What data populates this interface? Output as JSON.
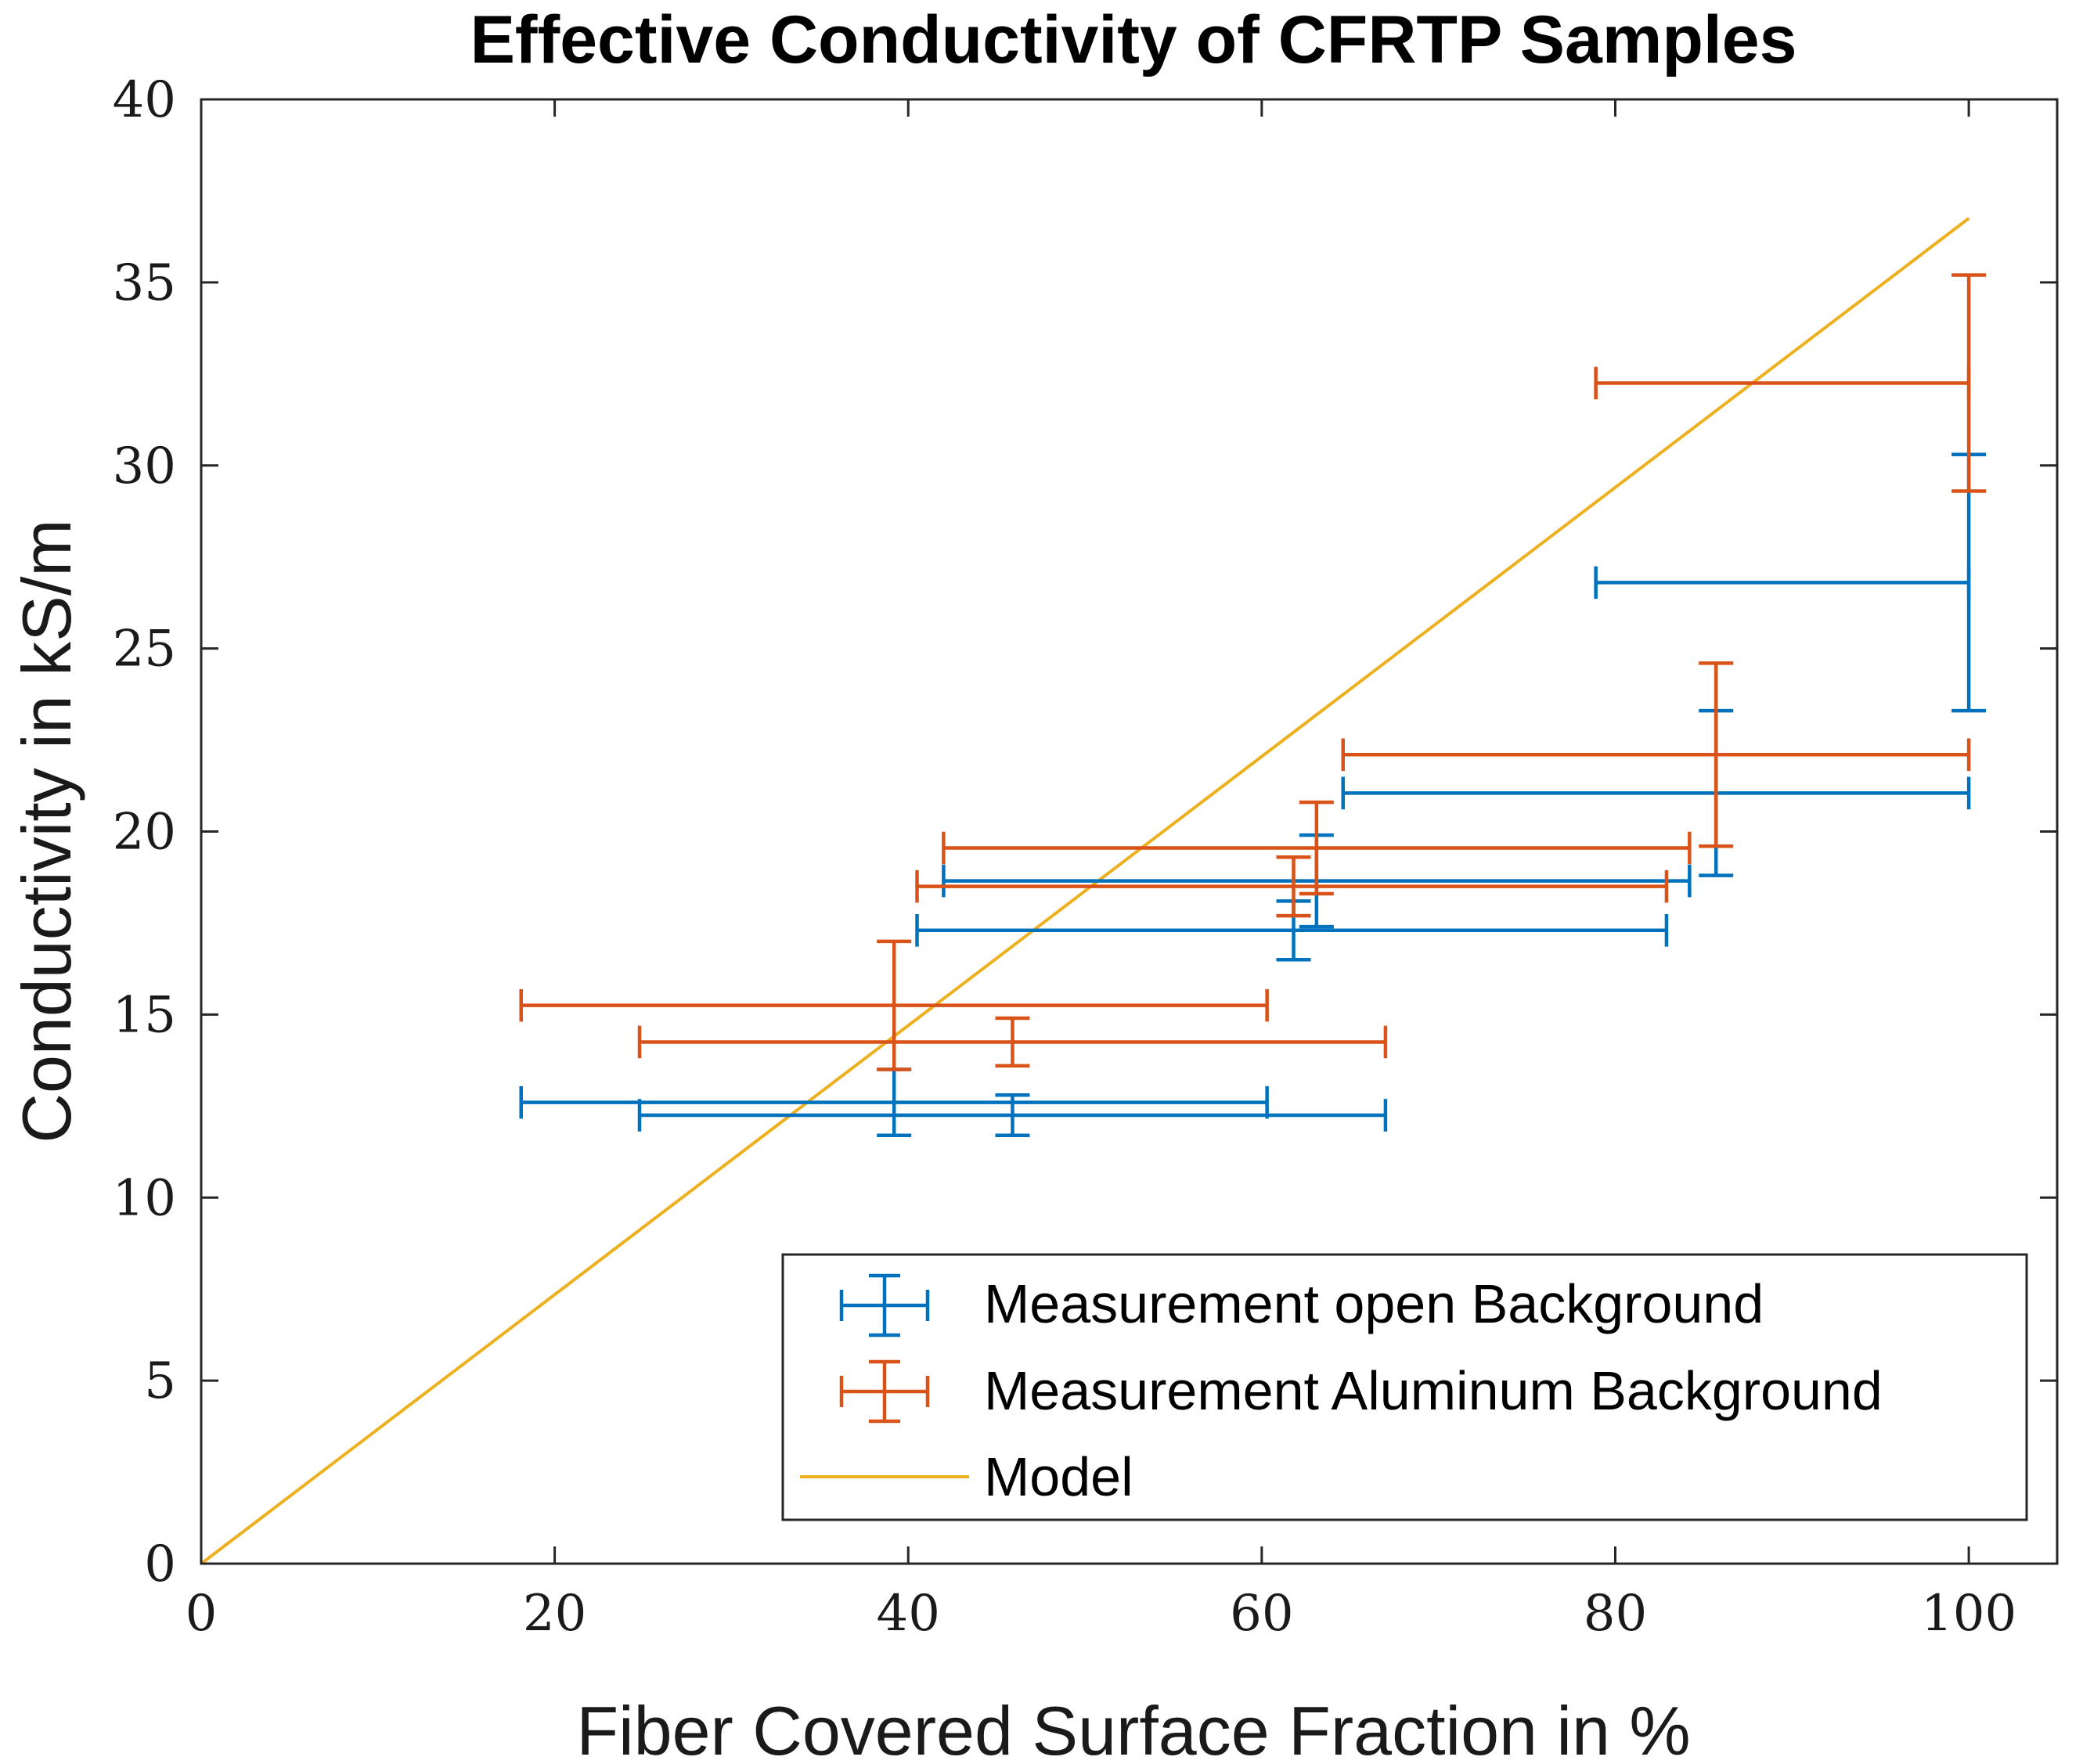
{
  "chart_data": {
    "type": "scatter",
    "title": "Effective Conductivity of CFRTP Samples",
    "xlabel": "Fiber Covered Surface Fraction in %",
    "ylabel": "Conductivity in kS/m",
    "xlim": [
      0,
      105
    ],
    "ylim": [
      0,
      40
    ],
    "xticks": [
      "0",
      "20",
      "40",
      "60",
      "80",
      "100"
    ],
    "xtick_values": [
      0,
      20,
      40,
      60,
      80,
      100
    ],
    "yticks": [
      "0",
      "5",
      "10",
      "15",
      "20",
      "25",
      "30",
      "35",
      "40"
    ],
    "ytick_values": [
      0,
      5,
      10,
      15,
      20,
      25,
      30,
      35,
      40
    ],
    "grid": false,
    "legend_position": "bottom-right",
    "colors": {
      "open": "#0072BD",
      "aluminum": "#D95319",
      "model": "#EDB120"
    },
    "series": [
      {
        "name": "Measurement open Background",
        "color": "#0072BD",
        "points": [
          {
            "x": 39.2,
            "y": 12.6,
            "xneg": 21.1,
            "xpos": 21.1,
            "yneg": 0.9,
            "ypos": 0.9
          },
          {
            "x": 45.9,
            "y": 12.25,
            "xneg": 21.1,
            "xpos": 21.1,
            "yneg": 0.55,
            "ypos": 0.55
          },
          {
            "x": 61.8,
            "y": 17.3,
            "xneg": 21.3,
            "xpos": 21.1,
            "yneg": 0.8,
            "ypos": 0.8
          },
          {
            "x": 63.1,
            "y": 18.65,
            "xneg": 21.1,
            "xpos": 21.1,
            "yneg": 1.25,
            "ypos": 1.25
          },
          {
            "x": 85.7,
            "y": 21.05,
            "xneg": 21.1,
            "xpos": 14.3,
            "yneg": 2.25,
            "ypos": 2.25
          },
          {
            "x": 100,
            "y": 26.8,
            "xneg": 21.1,
            "xpos": 0,
            "yneg": 3.5,
            "ypos": 3.5
          }
        ]
      },
      {
        "name": "Measurement Aluminum Background",
        "color": "#D95319",
        "points": [
          {
            "x": 39.2,
            "y": 15.25,
            "xneg": 21.1,
            "xpos": 21.1,
            "yneg": 1.75,
            "ypos": 1.75
          },
          {
            "x": 45.9,
            "y": 14.25,
            "xneg": 21.1,
            "xpos": 21.1,
            "yneg": 0.65,
            "ypos": 0.65
          },
          {
            "x": 61.8,
            "y": 18.5,
            "xneg": 21.3,
            "xpos": 21.1,
            "yneg": 0.8,
            "ypos": 0.8
          },
          {
            "x": 63.1,
            "y": 19.55,
            "xneg": 21.1,
            "xpos": 21.1,
            "yneg": 1.25,
            "ypos": 1.25
          },
          {
            "x": 85.7,
            "y": 22.1,
            "xneg": 21.1,
            "xpos": 14.3,
            "yneg": 2.5,
            "ypos": 2.5
          },
          {
            "x": 100,
            "y": 32.25,
            "xneg": 21.1,
            "xpos": 0,
            "yneg": 2.95,
            "ypos": 2.95
          }
        ]
      },
      {
        "name": "Model",
        "color": "#EDB120",
        "line": [
          {
            "x": 0,
            "y": 0
          },
          {
            "x": 100,
            "y": 36.75
          }
        ]
      }
    ]
  }
}
